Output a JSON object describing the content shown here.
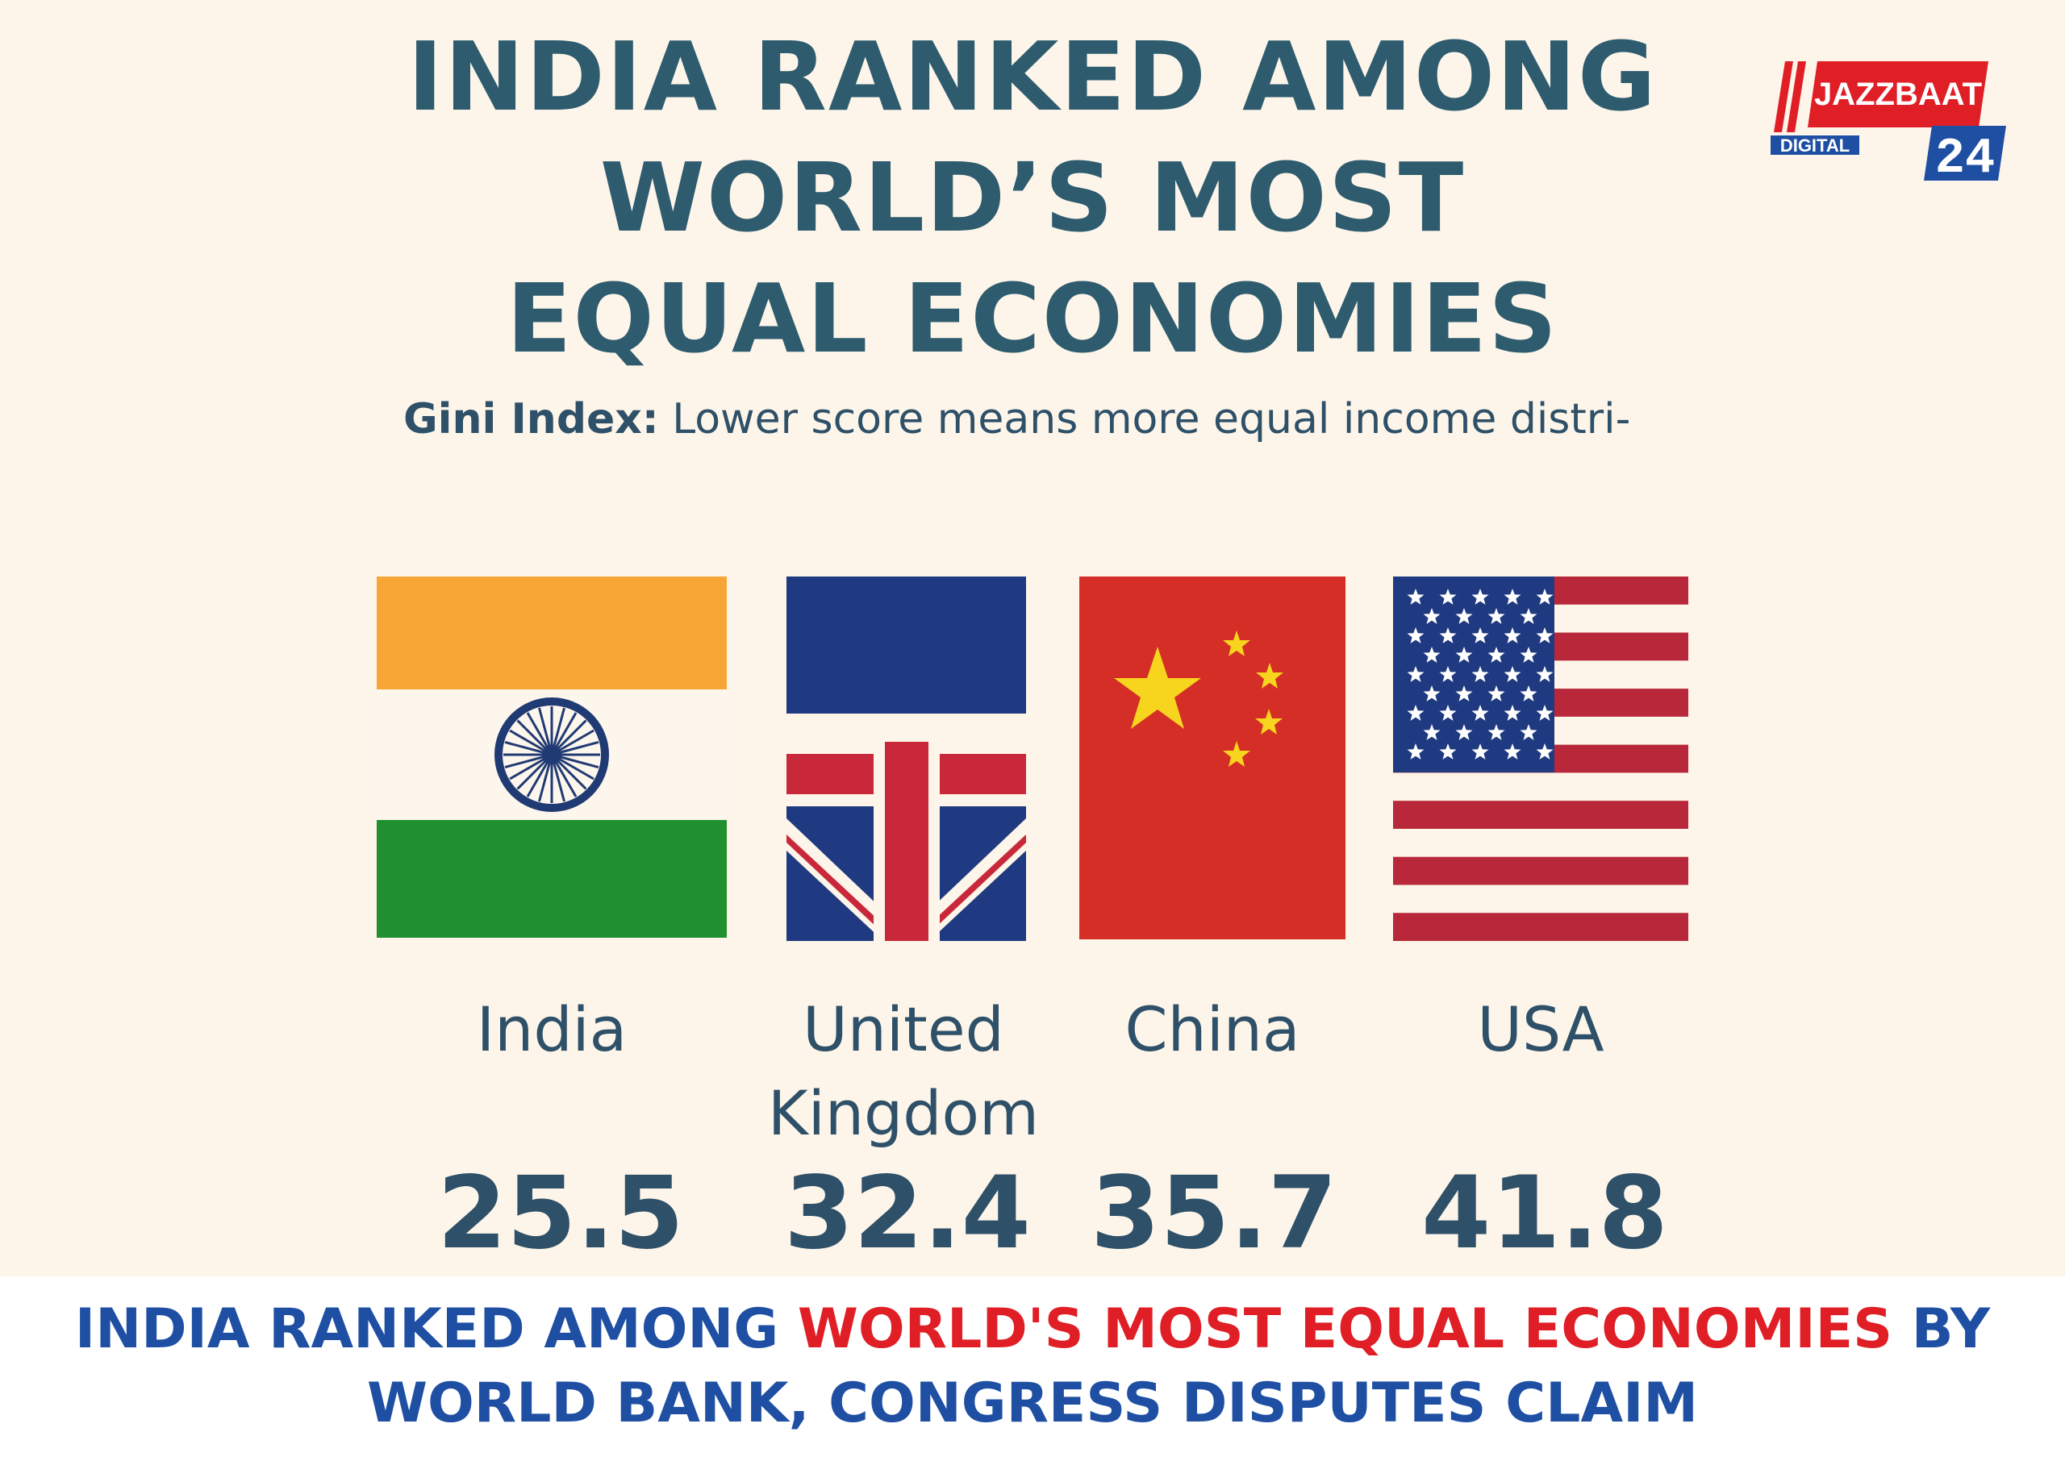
{
  "title": {
    "line1": "INDIA RANKED AMONG",
    "line2": "WORLD’S MOST",
    "line3": "EQUAL ECONOMIES"
  },
  "subtitle": {
    "label": "Gini Index:",
    "text": "Lower score means more equal income distri-"
  },
  "logo": {
    "name": "JAZZBAAT",
    "tagline": "DIGITAL",
    "number": "24"
  },
  "countries": [
    {
      "name_line1": "India",
      "name_line2": "",
      "value": "25.5",
      "flag": "india-flag"
    },
    {
      "name_line1": "United",
      "name_line2": "Kingdom",
      "value": "32.4",
      "flag": "uk-flag"
    },
    {
      "name_line1": "China",
      "name_line2": "",
      "value": "35.7",
      "flag": "china-flag"
    },
    {
      "name_line1": "USA",
      "name_line2": "",
      "value": "41.8",
      "flag": "usa-flag"
    }
  ],
  "headline": {
    "part1": "INDIA RANKED AMONG ",
    "part2": "WORLD'S MOST EQUAL ECONOMIES",
    "part3": " BY",
    "line2": "WORLD BANK, CONGRESS DISPUTES CLAIM"
  },
  "colors": {
    "background": "#fdf5e9",
    "title": "#2e5c6e",
    "headline_blue": "#1e4fa3",
    "headline_red": "#e01e26"
  }
}
